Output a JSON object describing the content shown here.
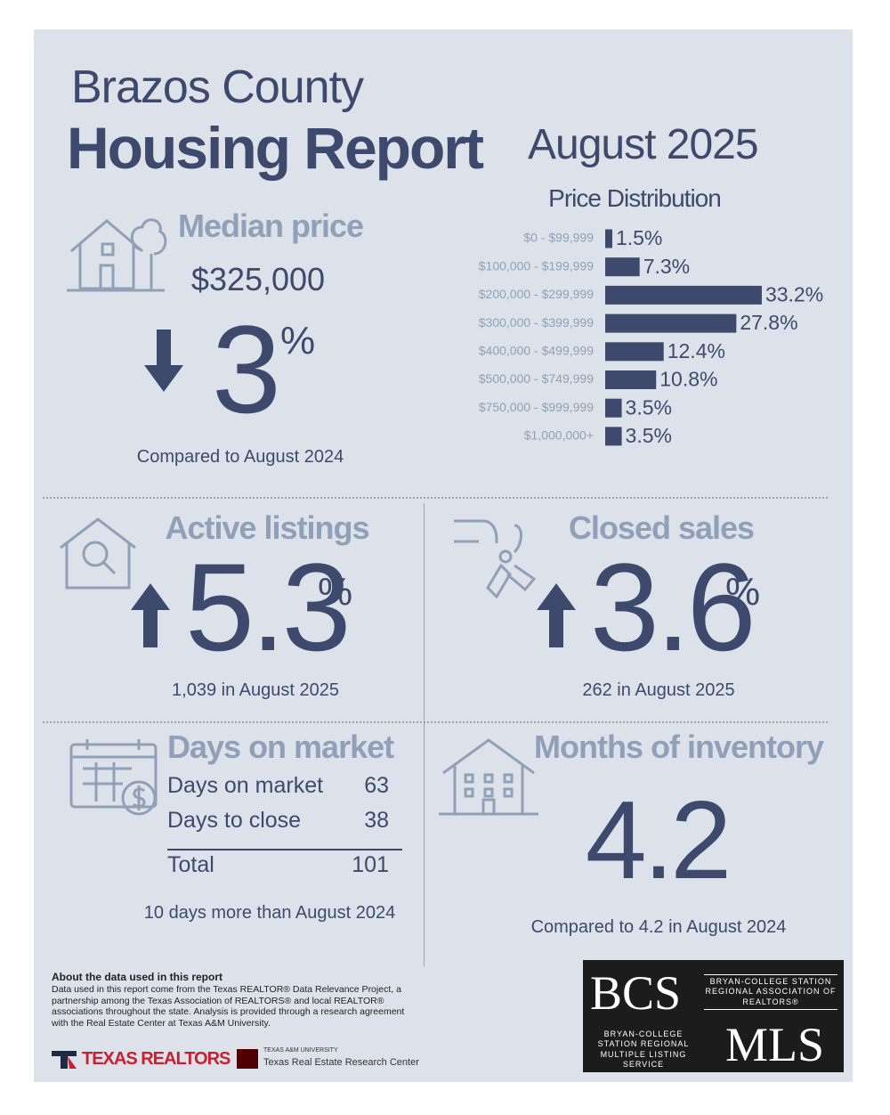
{
  "header": {
    "county": "Brazos County",
    "title": "Housing Report",
    "period": "August 2025"
  },
  "median_price": {
    "label": "Median price",
    "price": "$325,000",
    "change": 3,
    "unit": "%",
    "note": "Compared to August 2024"
  },
  "chart_data": {
    "type": "bar",
    "orientation": "horizontal",
    "title": "Price Distribution",
    "categories": [
      "$0 - $99,999",
      "$100,000 - $199,999",
      "$200,000 - $299,999",
      "$300,000 - $399,999",
      "$400,000 - $499,999",
      "$500,000 - $749,999",
      "$750,000 - $999,999",
      "$1,000,000+"
    ],
    "values": [
      1.5,
      7.3,
      33.2,
      27.8,
      12.4,
      10.8,
      3.5,
      3.5
    ],
    "value_labels": [
      "1.5%",
      "7.3%",
      "33.2%",
      "27.8%",
      "12.4%",
      "10.8%",
      "3.5%",
      "3.5%"
    ],
    "color": "#3d4a6d"
  },
  "active_listings": {
    "label": "Active listings",
    "change": 5.3,
    "unit": "%",
    "note": "1,039 in August 2025"
  },
  "closed_sales": {
    "label": "Closed sales",
    "change": 3.6,
    "unit": "%",
    "note": "262 in August 2025"
  },
  "days_on_market": {
    "label": "Days on market",
    "rows": [
      [
        "Days on market",
        63
      ],
      [
        "Days to close",
        38
      ]
    ],
    "total": [
      "Total",
      101
    ],
    "note": "10 days more than August 2024"
  },
  "months_of_inventory": {
    "label": "Months of inventory",
    "value": 4.2,
    "note": "Compared to 4.2 in August 2024"
  },
  "footer": {
    "about_title": "About the data used in this report",
    "about_text": "Data used in this report come from the Texas REALTOR® Data Relevance Project, a partnership among the Texas Association of REALTORS® and local REALTOR® associations throughout the state. Analysis is provided through a research agreement with the Real Estate Center at Texas A&M University.",
    "texas_realtors": "TEXAS REALTORS",
    "tamu": "TEXAS A&M UNIVERSITY",
    "recenter": "Texas Real Estate Research Center",
    "bcs": "BCS",
    "bcs_name": "BRYAN-COLLEGE STATION REGIONAL ASSOCIATION OF REALTORS®",
    "mls_name": "BRYAN-COLLEGE STATION REGIONAL MULTIPLE LISTING SERVICE",
    "mls": "MLS"
  }
}
